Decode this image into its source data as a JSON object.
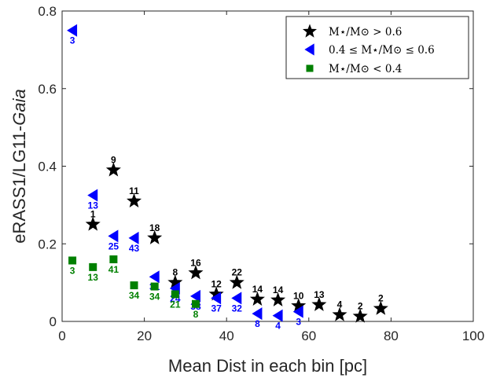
{
  "chart_data": {
    "type": "scatter",
    "xlabel": "Mean Dist in each bin [pc]",
    "ylabel_prefix": "eRASS1/LG11-",
    "ylabel_italic": "Gaia",
    "xlim": [
      0,
      100
    ],
    "ylim": [
      0,
      0.8
    ],
    "xticks": [
      0,
      20,
      40,
      60,
      80,
      100
    ],
    "yticks": [
      0,
      0.2,
      0.4,
      0.6,
      0.8
    ],
    "xtick_labels": [
      "0",
      "20",
      "40",
      "60",
      "80",
      "100"
    ],
    "ytick_labels": [
      "0",
      "0.2",
      "0.4",
      "0.6",
      "0.8"
    ],
    "grid": false,
    "legend_position": "top-right",
    "series": [
      {
        "legend": "M⋆/M⊙ > 0.6",
        "marker": "star",
        "color": "#000000",
        "label_position": "above",
        "points": [
          {
            "x": 7.5,
            "y": 0.25,
            "n": "1"
          },
          {
            "x": 12.5,
            "y": 0.39,
            "n": "9"
          },
          {
            "x": 17.5,
            "y": 0.31,
            "n": "11"
          },
          {
            "x": 22.5,
            "y": 0.215,
            "n": "18"
          },
          {
            "x": 27.5,
            "y": 0.1,
            "n": "8"
          },
          {
            "x": 32.5,
            "y": 0.125,
            "n": "16"
          },
          {
            "x": 37.5,
            "y": 0.07,
            "n": "12"
          },
          {
            "x": 42.5,
            "y": 0.1,
            "n": "22"
          },
          {
            "x": 47.5,
            "y": 0.057,
            "n": "14"
          },
          {
            "x": 52.5,
            "y": 0.055,
            "n": "14"
          },
          {
            "x": 57.5,
            "y": 0.04,
            "n": "10"
          },
          {
            "x": 62.5,
            "y": 0.043,
            "n": "13"
          },
          {
            "x": 67.5,
            "y": 0.017,
            "n": "4"
          },
          {
            "x": 72.5,
            "y": 0.013,
            "n": "2"
          },
          {
            "x": 77.5,
            "y": 0.033,
            "n": "2"
          }
        ]
      },
      {
        "legend": "0.4 ≤ M⋆/M⊙ ≤ 0.6",
        "marker": "triangle-left",
        "color": "#0000ff",
        "label_position": "below",
        "points": [
          {
            "x": 2.5,
            "y": 0.75,
            "n": "3"
          },
          {
            "x": 7.5,
            "y": 0.325,
            "n": "13"
          },
          {
            "x": 12.5,
            "y": 0.22,
            "n": "25"
          },
          {
            "x": 17.5,
            "y": 0.215,
            "n": "43"
          },
          {
            "x": 22.5,
            "y": 0.115,
            "n": "31"
          },
          {
            "x": 27.5,
            "y": 0.085,
            "n": "24"
          },
          {
            "x": 32.5,
            "y": 0.065,
            "n": "38"
          },
          {
            "x": 37.5,
            "y": 0.06,
            "n": "37"
          },
          {
            "x": 42.5,
            "y": 0.06,
            "n": "32"
          },
          {
            "x": 47.5,
            "y": 0.02,
            "n": "8"
          },
          {
            "x": 52.5,
            "y": 0.015,
            "n": "4"
          },
          {
            "x": 57.5,
            "y": 0.025,
            "n": "3"
          }
        ]
      },
      {
        "legend": "M⋆/M⊙ < 0.4",
        "marker": "square",
        "color": "#008000",
        "label_position": "below",
        "points": [
          {
            "x": 2.5,
            "y": 0.157,
            "n": "3"
          },
          {
            "x": 7.5,
            "y": 0.14,
            "n": "13"
          },
          {
            "x": 12.5,
            "y": 0.16,
            "n": "41"
          },
          {
            "x": 17.5,
            "y": 0.093,
            "n": "34"
          },
          {
            "x": 22.5,
            "y": 0.09,
            "n": "34"
          },
          {
            "x": 27.5,
            "y": 0.07,
            "n": "21"
          },
          {
            "x": 32.5,
            "y": 0.045,
            "n": "8"
          }
        ]
      }
    ]
  }
}
